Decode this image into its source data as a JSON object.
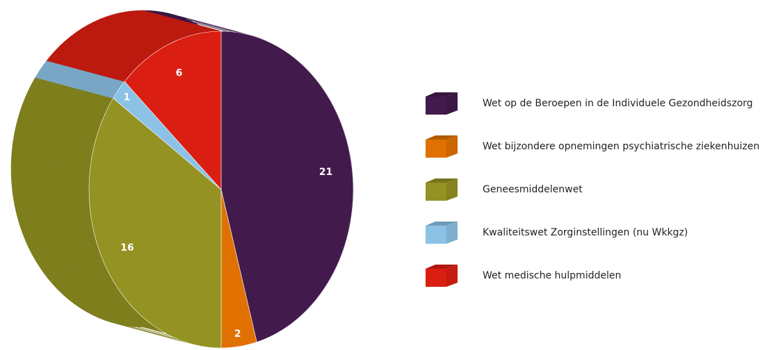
{
  "chart_data": {
    "type": "pie",
    "categories": [
      "Wet op de Beroepen in de Individuele Gezondheidszorg",
      "Wet bijzondere opnemingen psychiatrische ziekenhuizen",
      "Geneesmiddelenwet",
      "Kwaliteitswet Zorginstellingen (nu Wkkgz)",
      "Wet medische hulpmiddelen"
    ],
    "values": [
      21,
      2,
      16,
      1,
      6
    ],
    "colors": [
      "#421a4c",
      "#e07000",
      "#939222",
      "#8cc2e6",
      "#db1e12"
    ]
  }
}
